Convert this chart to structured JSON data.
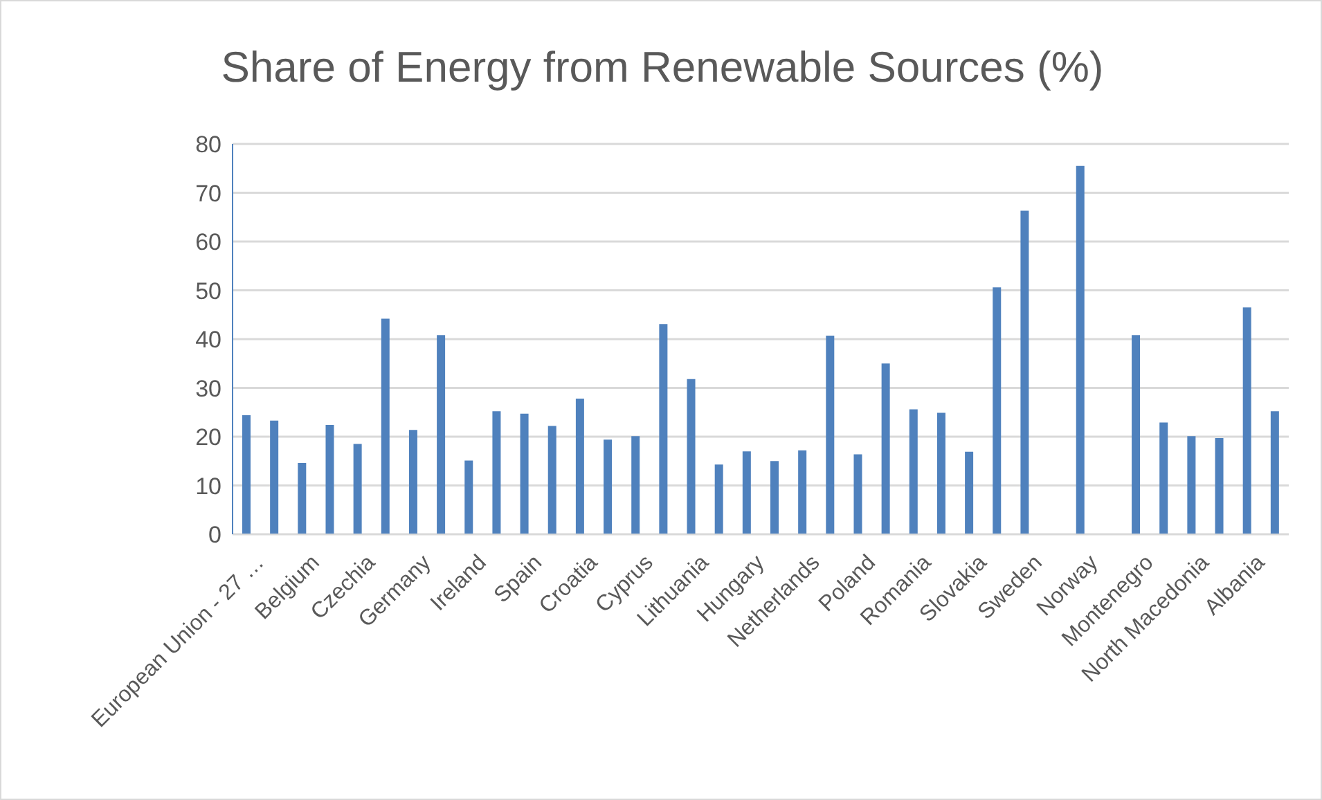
{
  "chart_data": {
    "type": "bar",
    "title": "Share of Energy from Renewable Sources (%)",
    "categories": [
      "European Union - 27 …",
      null,
      "Belgium",
      null,
      "Czechia",
      null,
      "Germany",
      null,
      "Ireland",
      null,
      "Spain",
      null,
      "Croatia",
      null,
      "Cyprus",
      null,
      "Lithuania",
      null,
      "Hungary",
      null,
      "Netherlands",
      null,
      "Poland",
      null,
      "Romania",
      null,
      "Slovakia",
      null,
      "Sweden",
      null,
      "Norway",
      null,
      "Montenegro",
      null,
      "North Macedonia",
      null,
      "Albania",
      null
    ],
    "values": [
      24.4,
      23.3,
      14.6,
      22.4,
      18.5,
      44.2,
      21.4,
      40.8,
      15.1,
      25.2,
      24.7,
      22.2,
      27.8,
      19.4,
      20.1,
      43.1,
      31.8,
      14.3,
      17.0,
      15.0,
      17.2,
      40.7,
      16.4,
      35.0,
      25.6,
      24.9,
      16.9,
      50.6,
      66.3,
      null,
      75.5,
      null,
      40.8,
      22.9,
      20.1,
      19.7,
      46.5,
      25.2
    ],
    "color": "#4f81bd",
    "ylim": [
      0,
      80
    ],
    "yticks": [
      0,
      10,
      20,
      30,
      40,
      50,
      60,
      70,
      80
    ],
    "grid": "y"
  }
}
